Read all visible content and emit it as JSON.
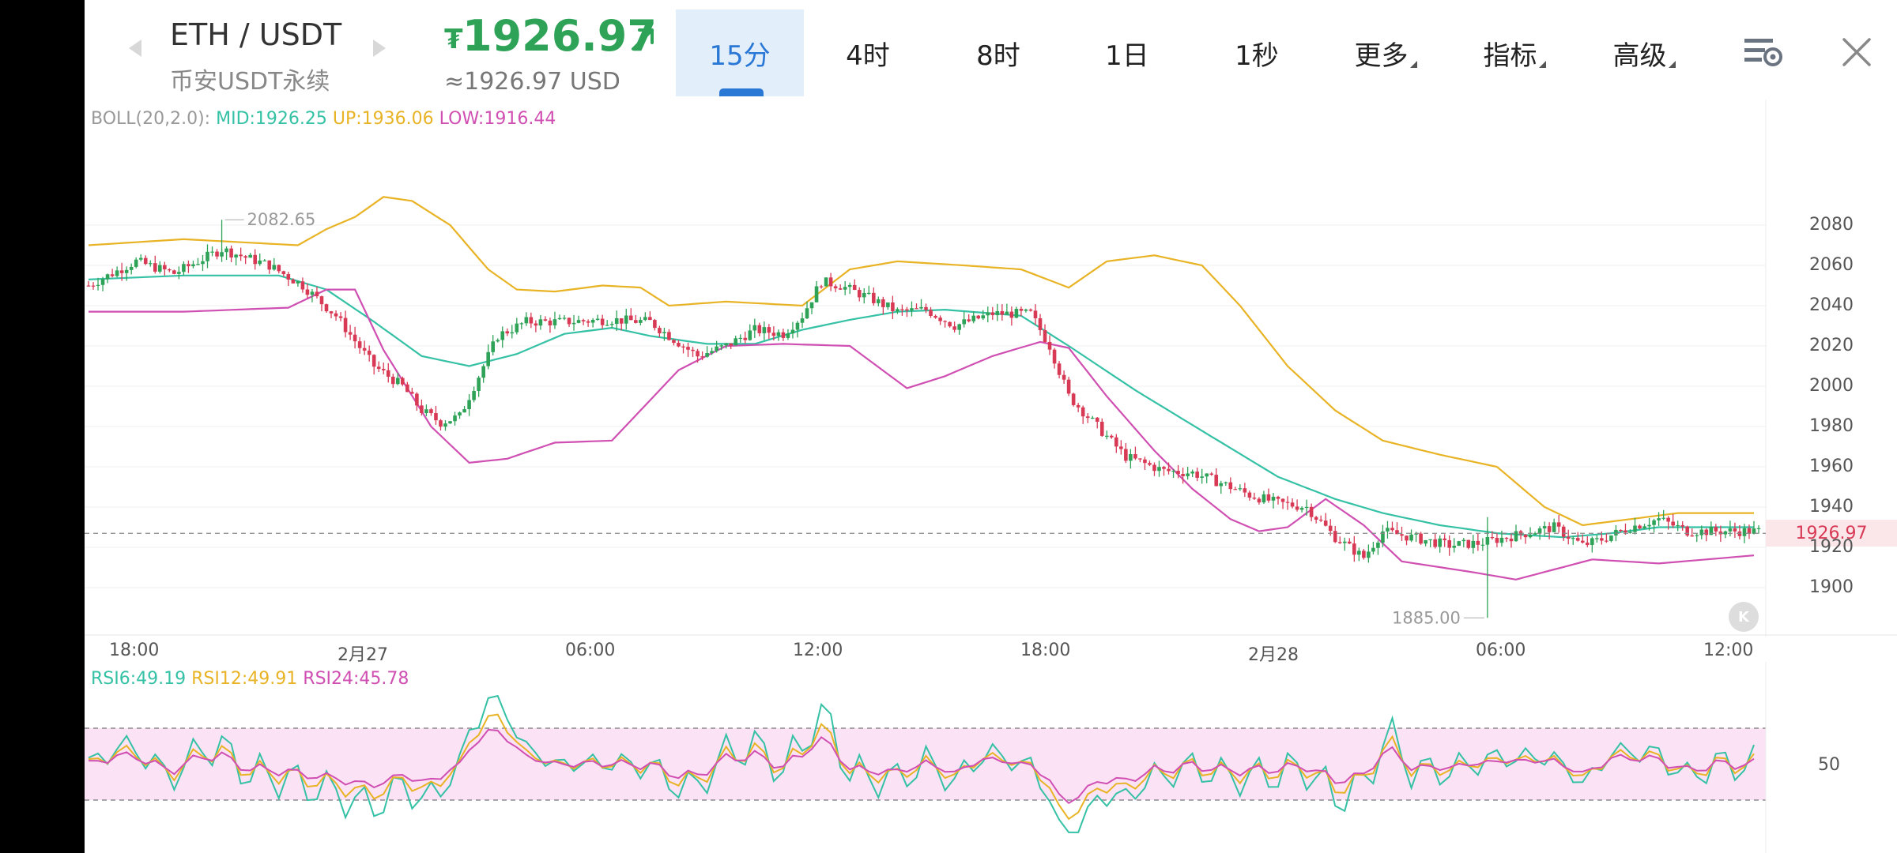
{
  "header": {
    "pair": "ETH / USDT",
    "market": "币安USDT永续",
    "price": "1926.97",
    "price_currency_icon": "₮",
    "price_usd": "≈1926.97 USD",
    "trend_color": "#2ea358"
  },
  "tabs": [
    {
      "label": "15分",
      "active": true
    },
    {
      "label": "4时"
    },
    {
      "label": "8时"
    },
    {
      "label": "1日"
    },
    {
      "label": "1秒"
    },
    {
      "label": "更多"
    },
    {
      "label": "指标"
    },
    {
      "label": "高级"
    }
  ],
  "boll": {
    "name": "BOLL(20,2.0):",
    "mid": "MID:1926.25",
    "up": "UP:1936.06",
    "low": "LOW:1916.44",
    "colors": {
      "mid": "#35c1a5",
      "up": "#e8b325",
      "low": "#d04fb2"
    }
  },
  "rsi": {
    "rsi6": "RSI6:49.19",
    "rsi12": "RSI12:49.91",
    "rsi24": "RSI24:45.78",
    "level_label": "50"
  },
  "chart_data": {
    "type": "candlestick",
    "y_ticks": [
      "2080",
      "2060",
      "2040",
      "2020",
      "2000",
      "1980",
      "1960",
      "1940",
      "1920",
      "1900"
    ],
    "x_ticks": [
      "18:00",
      "2月27",
      "06:00",
      "12:00",
      "18:00",
      "2月28",
      "06:00",
      "12:00"
    ],
    "ylim": [
      1880,
      2092
    ],
    "high_marker": "2082.65",
    "low_marker": "1885.00",
    "current_price": "1926.97",
    "colors": {
      "up": "#2ea358",
      "down": "#d83a55"
    },
    "close_anchors": [
      [
        0,
        2050
      ],
      [
        10,
        2062
      ],
      [
        18,
        2056
      ],
      [
        28,
        2068
      ],
      [
        38,
        2060
      ],
      [
        45,
        2050
      ],
      [
        52,
        2035
      ],
      [
        60,
        2010
      ],
      [
        66,
        2000
      ],
      [
        70,
        1988
      ],
      [
        74,
        1982
      ],
      [
        78,
        1985
      ],
      [
        82,
        2005
      ],
      [
        86,
        2025
      ],
      [
        92,
        2032
      ],
      [
        100,
        2032
      ],
      [
        110,
        2033
      ],
      [
        118,
        2032
      ],
      [
        122,
        2025
      ],
      [
        128,
        2015
      ],
      [
        134,
        2020
      ],
      [
        140,
        2028
      ],
      [
        146,
        2026
      ],
      [
        150,
        2035
      ],
      [
        154,
        2052
      ],
      [
        158,
        2050
      ],
      [
        164,
        2044
      ],
      [
        170,
        2037
      ],
      [
        176,
        2038
      ],
      [
        182,
        2030
      ],
      [
        190,
        2036
      ],
      [
        198,
        2036
      ],
      [
        202,
        2020
      ],
      [
        206,
        1995
      ],
      [
        212,
        1980
      ],
      [
        218,
        1965
      ],
      [
        226,
        1958
      ],
      [
        232,
        1957
      ],
      [
        238,
        1952
      ],
      [
        244,
        1946
      ],
      [
        250,
        1942
      ],
      [
        256,
        1940
      ],
      [
        262,
        1925
      ],
      [
        268,
        1915
      ],
      [
        272,
        1928
      ],
      [
        278,
        1925
      ],
      [
        286,
        1921
      ],
      [
        292,
        1922
      ],
      [
        300,
        1926
      ],
      [
        308,
        1930
      ],
      [
        314,
        1921
      ],
      [
        318,
        1924
      ],
      [
        324,
        1930
      ],
      [
        330,
        1934
      ],
      [
        336,
        1928
      ],
      [
        344,
        1928
      ],
      [
        350,
        1928
      ]
    ],
    "boll_mid_anchors": [
      [
        0,
        2053
      ],
      [
        20,
        2055
      ],
      [
        40,
        2055
      ],
      [
        50,
        2048
      ],
      [
        60,
        2032
      ],
      [
        70,
        2015
      ],
      [
        80,
        2010
      ],
      [
        90,
        2016
      ],
      [
        100,
        2026
      ],
      [
        110,
        2029
      ],
      [
        118,
        2025
      ],
      [
        130,
        2021
      ],
      [
        140,
        2021
      ],
      [
        150,
        2028
      ],
      [
        160,
        2033
      ],
      [
        170,
        2037
      ],
      [
        180,
        2038
      ],
      [
        196,
        2035
      ],
      [
        206,
        2020
      ],
      [
        220,
        1998
      ],
      [
        236,
        1975
      ],
      [
        250,
        1955
      ],
      [
        262,
        1944
      ],
      [
        272,
        1937
      ],
      [
        284,
        1931
      ],
      [
        296,
        1927
      ],
      [
        310,
        1925
      ],
      [
        320,
        1927
      ],
      [
        330,
        1930
      ],
      [
        350,
        1930
      ]
    ],
    "boll_up_anchors": [
      [
        0,
        2070
      ],
      [
        20,
        2073
      ],
      [
        44,
        2070
      ],
      [
        50,
        2078
      ],
      [
        56,
        2084
      ],
      [
        62,
        2094
      ],
      [
        68,
        2092
      ],
      [
        76,
        2080
      ],
      [
        84,
        2058
      ],
      [
        90,
        2048
      ],
      [
        98,
        2047
      ],
      [
        108,
        2050
      ],
      [
        116,
        2049
      ],
      [
        122,
        2040
      ],
      [
        134,
        2042
      ],
      [
        150,
        2040
      ],
      [
        160,
        2058
      ],
      [
        170,
        2062
      ],
      [
        184,
        2060
      ],
      [
        196,
        2058
      ],
      [
        206,
        2049
      ],
      [
        214,
        2062
      ],
      [
        224,
        2065
      ],
      [
        234,
        2060
      ],
      [
        242,
        2040
      ],
      [
        252,
        2010
      ],
      [
        262,
        1988
      ],
      [
        272,
        1973
      ],
      [
        284,
        1966
      ],
      [
        296,
        1960
      ],
      [
        306,
        1940
      ],
      [
        314,
        1931
      ],
      [
        324,
        1934
      ],
      [
        334,
        1937
      ],
      [
        350,
        1937
      ]
    ],
    "boll_low_anchors": [
      [
        0,
        2037
      ],
      [
        20,
        2037
      ],
      [
        42,
        2039
      ],
      [
        50,
        2048
      ],
      [
        56,
        2048
      ],
      [
        62,
        2018
      ],
      [
        72,
        1980
      ],
      [
        80,
        1962
      ],
      [
        88,
        1964
      ],
      [
        98,
        1972
      ],
      [
        110,
        1973
      ],
      [
        124,
        2008
      ],
      [
        134,
        2020
      ],
      [
        146,
        2021
      ],
      [
        160,
        2020
      ],
      [
        172,
        1999
      ],
      [
        180,
        2005
      ],
      [
        190,
        2015
      ],
      [
        200,
        2022
      ],
      [
        206,
        2019
      ],
      [
        214,
        1995
      ],
      [
        224,
        1968
      ],
      [
        232,
        1949
      ],
      [
        240,
        1934
      ],
      [
        246,
        1928
      ],
      [
        252,
        1930
      ],
      [
        260,
        1944
      ],
      [
        268,
        1931
      ],
      [
        276,
        1913
      ],
      [
        290,
        1908
      ],
      [
        300,
        1904
      ],
      [
        308,
        1909
      ],
      [
        316,
        1914
      ],
      [
        330,
        1912
      ],
      [
        350,
        1916
      ]
    ]
  }
}
